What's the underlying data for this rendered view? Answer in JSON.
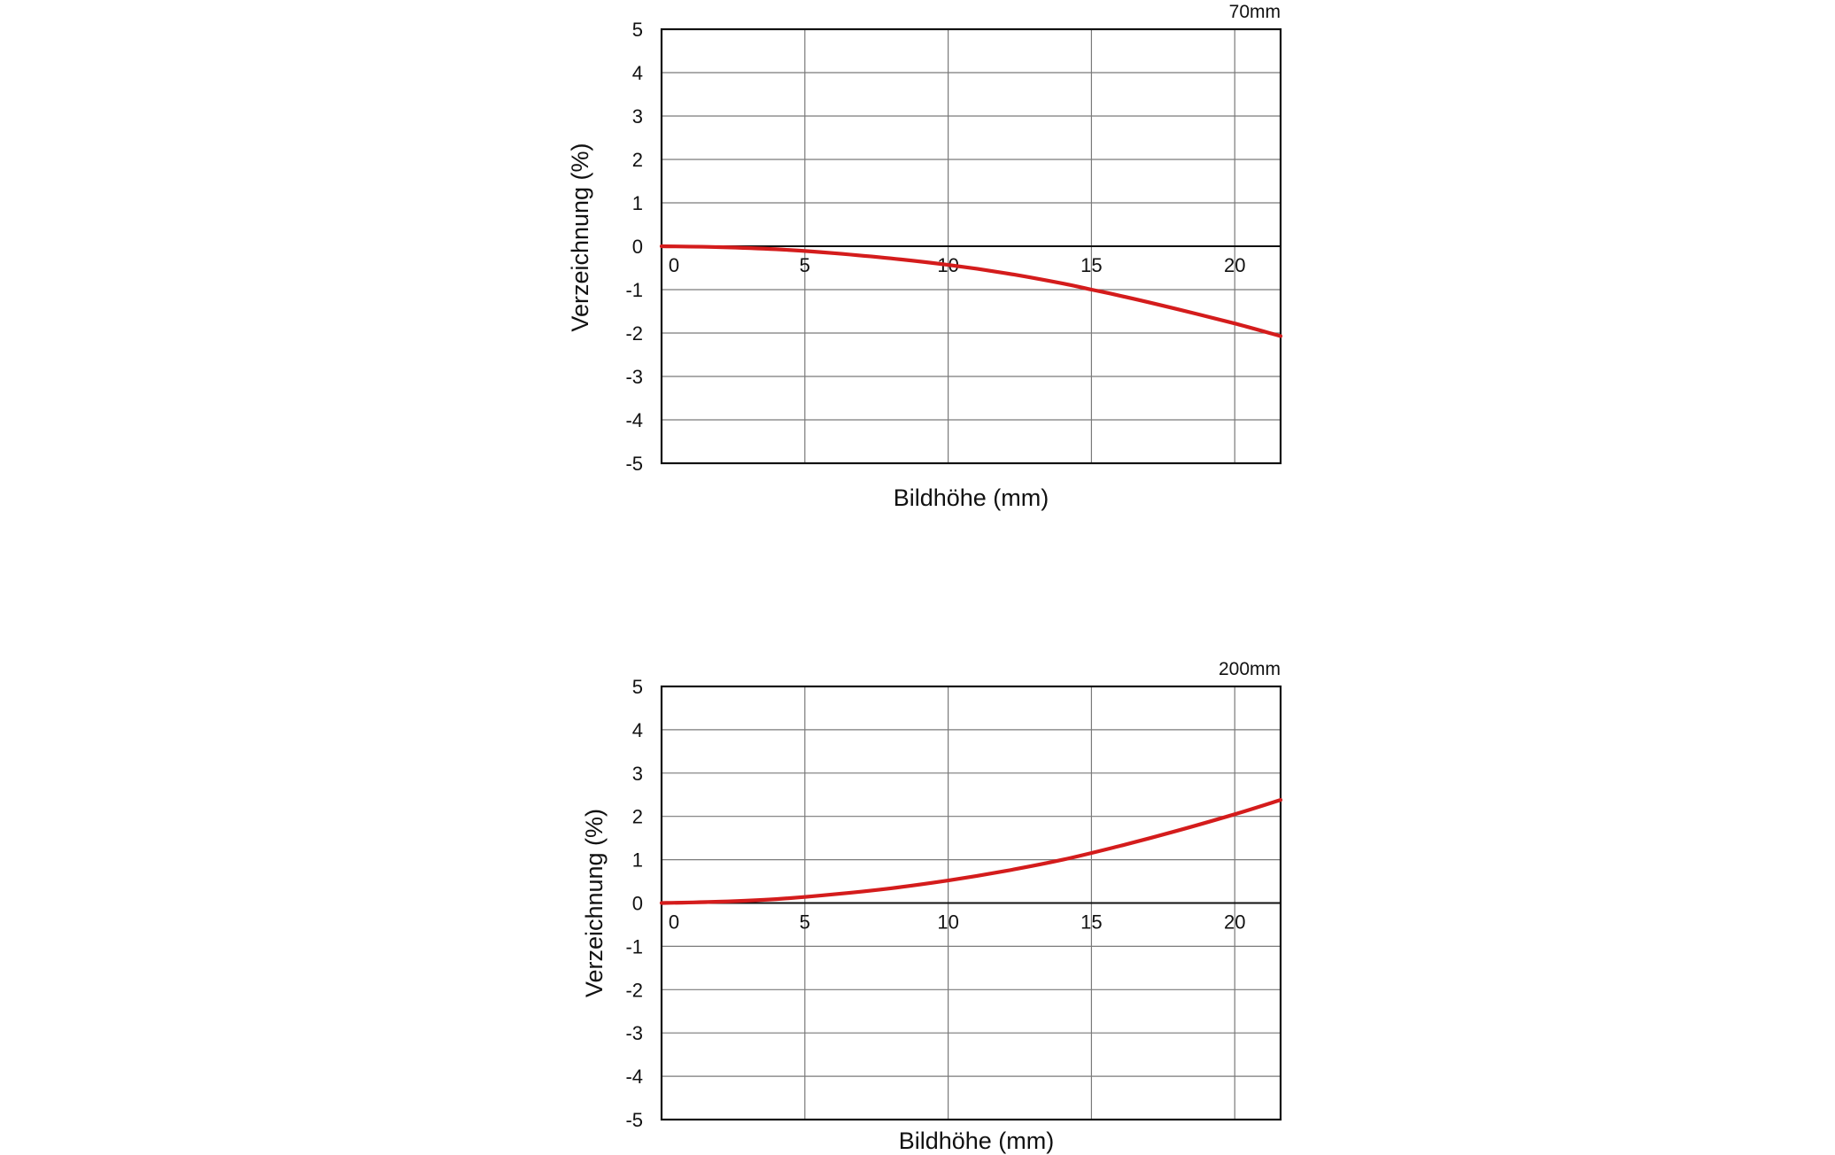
{
  "colors": {
    "curve": "#d41c1c",
    "grid": "#7a7a7a",
    "frame": "#111111",
    "text": "#111111",
    "background": "#ffffff"
  },
  "chart_data": [
    {
      "type": "line",
      "title": "70mm",
      "xlabel": "Bildhöhe (mm)",
      "ylabel": "Verzeichnung (%)",
      "xlim": [
        0,
        21.6
      ],
      "ylim": [
        -5,
        5
      ],
      "x_ticks": [
        "0",
        "5",
        "10",
        "15",
        "20"
      ],
      "y_ticks": [
        "5",
        "4",
        "3",
        "2",
        "1",
        "0",
        "-1",
        "-2",
        "-3",
        "-4",
        "-5"
      ],
      "grid": true,
      "series": [
        {
          "x": [
            0,
            2,
            4,
            6,
            8,
            10,
            12,
            14,
            15,
            16,
            18,
            20,
            21.6
          ],
          "y": [
            0,
            -0.02,
            -0.07,
            -0.16,
            -0.28,
            -0.43,
            -0.62,
            -0.86,
            -1.0,
            -1.14,
            -1.45,
            -1.78,
            -2.07
          ]
        }
      ]
    },
    {
      "type": "line",
      "title": "200mm",
      "xlabel": "Bildhöhe (mm)",
      "ylabel": "Verzeichnung (%)",
      "xlim": [
        0,
        21.6
      ],
      "ylim": [
        -5,
        5
      ],
      "x_ticks": [
        "0",
        "5",
        "10",
        "15",
        "20"
      ],
      "y_ticks": [
        "5",
        "4",
        "3",
        "2",
        "1",
        "0",
        "-1",
        "-2",
        "-3",
        "-4",
        "-5"
      ],
      "grid": true,
      "series": [
        {
          "x": [
            0,
            2,
            4,
            6,
            8,
            10,
            12,
            14,
            16,
            18,
            20,
            21.6
          ],
          "y": [
            0,
            0.03,
            0.09,
            0.2,
            0.34,
            0.52,
            0.74,
            1.0,
            1.32,
            1.67,
            2.05,
            2.38
          ]
        }
      ]
    }
  ]
}
